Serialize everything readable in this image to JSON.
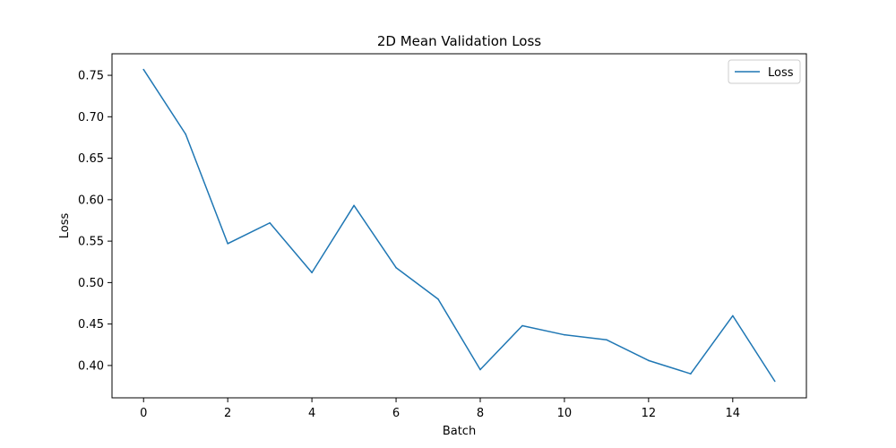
{
  "chart_data": {
    "type": "line",
    "title": "2D Mean Validation Loss",
    "xlabel": "Batch",
    "ylabel": "Loss",
    "xlim": [
      -0.75,
      15.75
    ],
    "ylim": [
      0.361,
      0.776
    ],
    "xticks": [
      0,
      2,
      4,
      6,
      8,
      10,
      12,
      14
    ],
    "yticks": [
      0.4,
      0.45,
      0.5,
      0.55,
      0.6,
      0.65,
      0.7,
      0.75
    ],
    "x": [
      0,
      1,
      2,
      3,
      4,
      5,
      6,
      7,
      8,
      9,
      10,
      11,
      12,
      13,
      14,
      15
    ],
    "series": [
      {
        "name": "Loss",
        "color": "#1f77b4",
        "values": [
          0.757,
          0.679,
          0.547,
          0.572,
          0.512,
          0.593,
          0.518,
          0.48,
          0.395,
          0.448,
          0.437,
          0.431,
          0.406,
          0.39,
          0.46,
          0.381
        ]
      }
    ],
    "legend": {
      "position": "top-right"
    },
    "grid": false
  }
}
